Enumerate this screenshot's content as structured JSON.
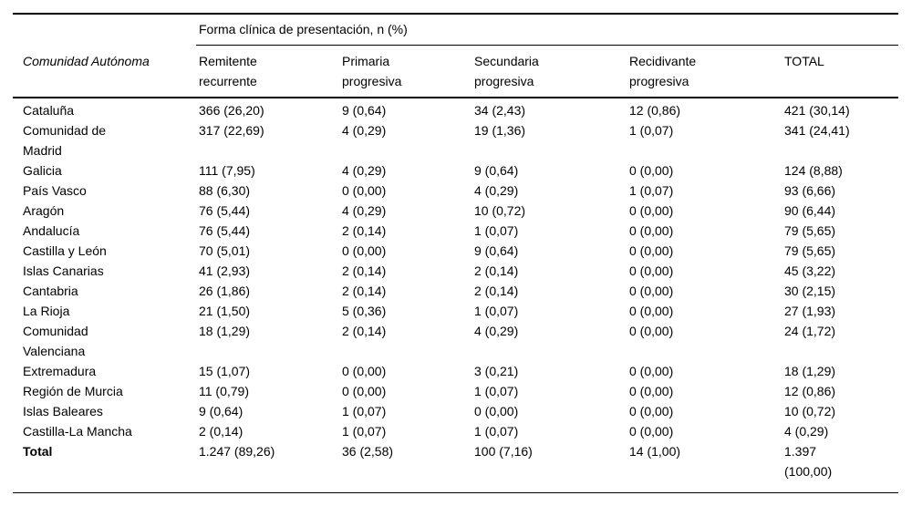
{
  "table": {
    "spanner": "Forma clínica de presentación, n (%)",
    "row_header": "Comunidad Autónoma",
    "columns": [
      "Remitente\nrecurrente",
      "Primaria\nprogresiva",
      "Secundaria\nprogresiva",
      "Recidivante\nprogresiva",
      "TOTAL"
    ],
    "rows": [
      {
        "name": "Cataluña",
        "values": [
          "366 (26,20)",
          "9 (0,64)",
          "34 (2,43)",
          "12 (0,86)",
          "421 (30,14)"
        ]
      },
      {
        "name": "Comunidad de\nMadrid",
        "values": [
          "317 (22,69)",
          "4 (0,29)",
          "19 (1,36)",
          "1 (0,07)",
          "341 (24,41)"
        ]
      },
      {
        "name": "Galicia",
        "values": [
          "111 (7,95)",
          "4 (0,29)",
          "9 (0,64)",
          "0 (0,00)",
          "124 (8,88)"
        ]
      },
      {
        "name": "País Vasco",
        "values": [
          "88 (6,30)",
          "0 (0,00)",
          "4 (0,29)",
          "1 (0,07)",
          "93 (6,66)"
        ]
      },
      {
        "name": "Aragón",
        "values": [
          "76 (5,44)",
          "4 (0,29)",
          "10 (0,72)",
          "0 (0,00)",
          "90 (6,44)"
        ]
      },
      {
        "name": "Andalucía",
        "values": [
          "76 (5,44)",
          "2 (0,14)",
          "1 (0,07)",
          "0 (0,00)",
          "79 (5,65)"
        ]
      },
      {
        "name": "Castilla y León",
        "values": [
          "70 (5,01)",
          "0 (0,00)",
          "9 (0,64)",
          "0 (0,00)",
          "79 (5,65)"
        ]
      },
      {
        "name": "Islas Canarias",
        "values": [
          "41 (2,93)",
          "2 (0,14)",
          "2 (0,14)",
          "0 (0,00)",
          "45 (3,22)"
        ]
      },
      {
        "name": "Cantabria",
        "values": [
          "26 (1,86)",
          "2 (0,14)",
          "2 (0,14)",
          "0 (0,00)",
          "30 (2,15)"
        ]
      },
      {
        "name": "La Rioja",
        "values": [
          "21 (1,50)",
          "5 (0,36)",
          "1 (0,07)",
          "0 (0,00)",
          "27 (1,93)"
        ]
      },
      {
        "name": "Comunidad\nValenciana",
        "values": [
          "18 (1,29)",
          "2 (0,14)",
          "4 (0,29)",
          "0 (0,00)",
          "24 (1,72)"
        ]
      },
      {
        "name": "Extremadura",
        "values": [
          "15 (1,07)",
          "0 (0,00)",
          "3 (0,21)",
          "0 (0,00)",
          "18 (1,29)"
        ]
      },
      {
        "name": "Región de Murcia",
        "values": [
          "11 (0,79)",
          "0 (0,00)",
          "1 (0,07)",
          "0 (0,00)",
          "12 (0,86)"
        ]
      },
      {
        "name": "Islas Baleares",
        "values": [
          "9 (0,64)",
          "1 (0,07)",
          "0 (0,00)",
          "0 (0,00)",
          "10 (0,72)"
        ]
      },
      {
        "name": "Castilla-La Mancha",
        "values": [
          "2 (0,14)",
          "1 (0,07)",
          "1 (0,07)",
          "0 (0,00)",
          "4 (0,29)"
        ]
      },
      {
        "name": "Total",
        "bold": true,
        "values": [
          "1.247 (89,26)",
          "36 (2,58)",
          "100 (7,16)",
          "14 (1,00)",
          "1.397\n(100,00)"
        ]
      }
    ]
  }
}
